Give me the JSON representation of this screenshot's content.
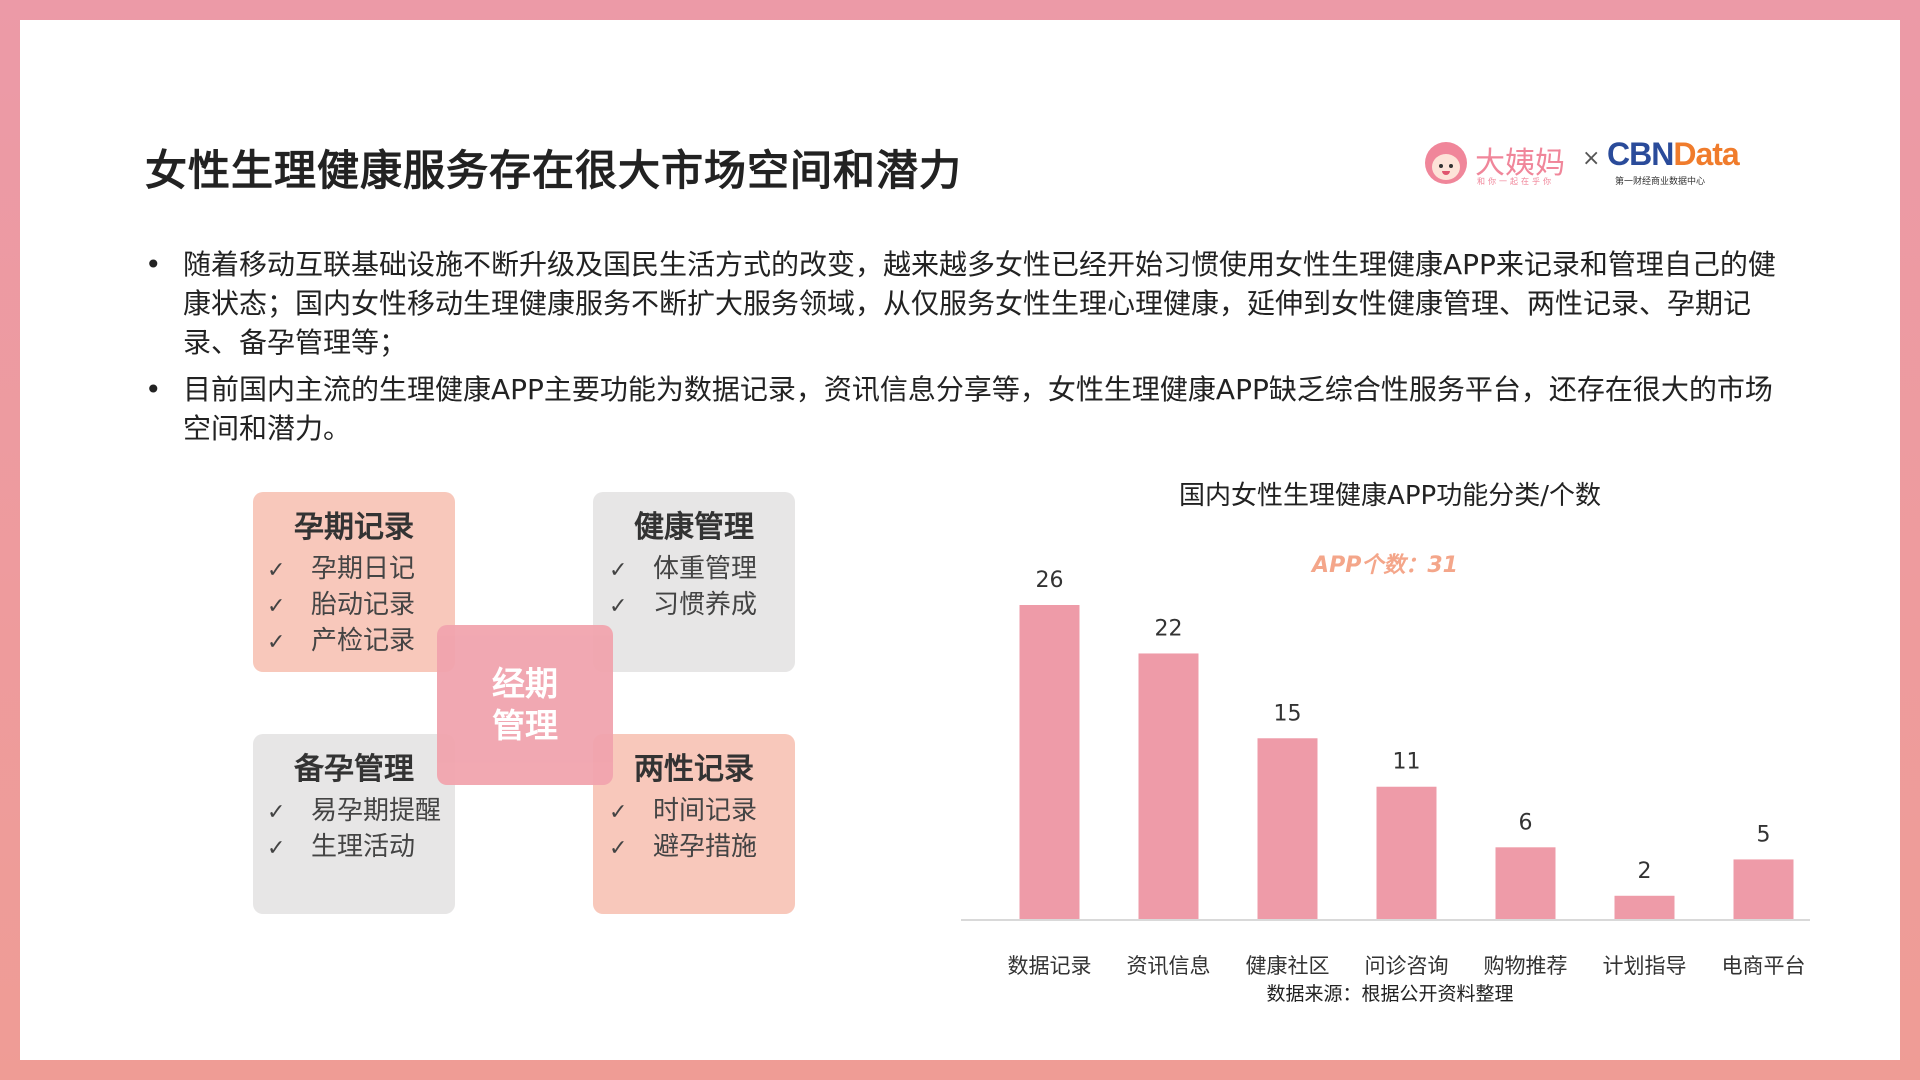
{
  "header": {
    "title": "女性生理健康服务存在很大市场空间和潜力",
    "logo": {
      "brand_primary": "大姨妈",
      "brand_slogan": "和你一起在乎你",
      "separator": "×",
      "brand_secondary_a": "CBN",
      "brand_secondary_b": "Data",
      "brand_secondary_tag": "第一财经商业数据中心",
      "colors": {
        "pink": "#f0869a",
        "navy": "#2a4b9a",
        "orange": "#f07c2c"
      }
    }
  },
  "bullets": [
    {
      "symbol": "•",
      "text": "随着移动互联基础设施不断升级及国民生活方式的改变，越来越多女性已经开始习惯使用女性生理健康APP来记录和管理自己的健康状态；国内女性移动生理健康服务不断扩大服务领域，从仅服务女性生理心理健康，延伸到女性健康管理、两性记录、孕期记录、备孕管理等；"
    },
    {
      "symbol": "•",
      "text": "目前国内主流的生理健康APP主要功能为数据记录，资讯信息分享等，女性生理健康APP缺乏综合性服务平台，还存在很大的市场空间和潜力。"
    }
  ],
  "diagram": {
    "check_symbol": "✓",
    "center": {
      "line1": "经期",
      "line2": "管理"
    },
    "boxes": [
      {
        "title": "孕期记录",
        "items": [
          "孕期日记",
          "胎动记录",
          "产检记录"
        ]
      },
      {
        "title": "健康管理",
        "items": [
          "体重管理",
          "习惯养成"
        ]
      },
      {
        "title": "备孕管理",
        "items": [
          "易孕期提醒",
          "生理活动"
        ]
      },
      {
        "title": "两性记录",
        "items": [
          "时间记录",
          "避孕措施"
        ]
      }
    ],
    "colors": {
      "peach": "#f8c8bb",
      "gray": "#e7e6e6",
      "center": "#f1a4ae"
    }
  },
  "chart_data": {
    "type": "bar",
    "title": "国内女性生理健康APP功能分类/个数",
    "annotation": "APP个数：31",
    "categories": [
      "数据记录",
      "资讯信息",
      "健康社区",
      "问诊咨询",
      "购物推荐",
      "计划指导",
      "电商平台"
    ],
    "values": [
      26,
      22,
      15,
      11,
      6,
      2,
      5
    ],
    "ylim": [
      0,
      26
    ],
    "grid": false,
    "legend": "none",
    "source": "数据来源：根据公开资料整理",
    "colors": {
      "bar": "#ee9ba8",
      "annotation": "#f4a68a",
      "axis": "#d9d9d9"
    }
  }
}
